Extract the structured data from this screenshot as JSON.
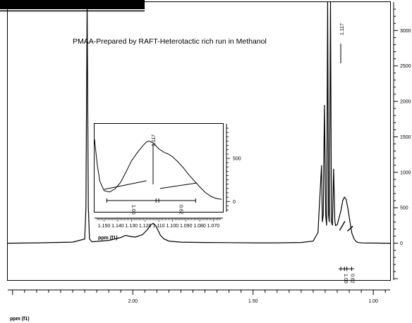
{
  "header_fragment": "",
  "chart_data": {
    "type": "line",
    "title": "PMAA-Prepared by RAFT-Heterotactic rich run in Methanol",
    "xlabel": "ppm (f1)",
    "x_reversed": true,
    "xlim": [
      2.52,
      0.93
    ],
    "ylim": [
      -520,
      3400
    ],
    "x_ticks": [
      2.0,
      1.5,
      1.0
    ],
    "x_tick_labels": [
      "2.00",
      "1.50",
      "1.00"
    ],
    "y_ticks": [
      0,
      500,
      1000,
      1500,
      2000,
      2500,
      3000
    ],
    "y_tick_labels": [
      "0",
      "500",
      "1000",
      "1500",
      "2000",
      "2500",
      "3000"
    ],
    "peak_label": "1.117",
    "integrals": [
      {
        "from": 1.135,
        "to": 1.12,
        "value": "1.00"
      },
      {
        "from": 1.11,
        "to": 1.09,
        "value": "0.62"
      }
    ],
    "series": [
      {
        "x": [
          2.52,
          2.4,
          2.25,
          2.2,
          2.195,
          2.19,
          2.185,
          2.18,
          2.17,
          2.1,
          2.05,
          2.03,
          2.01,
          1.99,
          1.96,
          1.94,
          1.925,
          1.915,
          1.905,
          1.895,
          1.885,
          1.87,
          1.85,
          1.8,
          1.7,
          1.6,
          1.5,
          1.4,
          1.3,
          1.25,
          1.23,
          1.215,
          1.212,
          1.208,
          1.203,
          1.198,
          1.194,
          1.19,
          1.186,
          1.183,
          1.178,
          1.174,
          1.17,
          1.165,
          1.16,
          1.157,
          1.15,
          1.143,
          1.135,
          1.127,
          1.12,
          1.113,
          1.105,
          1.097,
          1.09,
          1.08,
          1.07,
          1.06,
          1.04,
          1.0,
          0.95,
          0.93
        ],
        "y": [
          0,
          5,
          15,
          60,
          500,
          3400,
          500,
          60,
          20,
          40,
          80,
          110,
          95,
          85,
          120,
          190,
          260,
          280,
          250,
          180,
          110,
          60,
          30,
          15,
          10,
          8,
          5,
          5,
          10,
          30,
          150,
          1100,
          300,
          400,
          1950,
          400,
          250,
          3400,
          400,
          300,
          3400,
          300,
          250,
          1050,
          320,
          250,
          260,
          350,
          450,
          600,
          650,
          620,
          480,
          300,
          150,
          60,
          20,
          8,
          3,
          2,
          0,
          0
        ]
      }
    ],
    "inset": {
      "xlabel": "ppm (f1)",
      "xlim": [
        1.157,
        1.063
      ],
      "ylim": [
        -120,
        900
      ],
      "x_ticks": [
        1.15,
        1.14,
        1.13,
        1.12,
        1.11,
        1.1,
        1.09,
        1.08,
        1.07
      ],
      "x_tick_labels": [
        "1.150",
        "1.140",
        "1.130",
        "1.120",
        "1.110",
        "1.100",
        "1.090",
        "1.080",
        "1.070"
      ],
      "y_ticks": [
        0,
        500
      ],
      "y_tick_labels": [
        "0",
        "500"
      ],
      "peak_label": "1.117",
      "series": [
        {
          "x": [
            1.157,
            1.155,
            1.153,
            1.15,
            1.146,
            1.142,
            1.138,
            1.134,
            1.13,
            1.126,
            1.122,
            1.119,
            1.117,
            1.114,
            1.11,
            1.106,
            1.103,
            1.1,
            1.096,
            1.092,
            1.088,
            1.084,
            1.08,
            1.076,
            1.072,
            1.068,
            1.064
          ],
          "y": [
            720,
            420,
            230,
            125,
            110,
            145,
            220,
            340,
            470,
            560,
            640,
            690,
            700,
            680,
            610,
            570,
            550,
            520,
            460,
            390,
            310,
            240,
            170,
            105,
            60,
            35,
            25
          ]
        }
      ]
    }
  }
}
